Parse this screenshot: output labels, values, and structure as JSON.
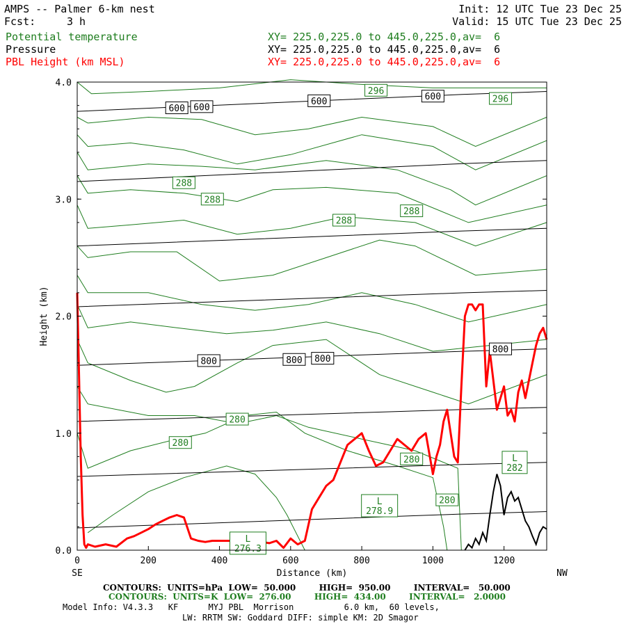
{
  "header": {
    "title": "AMPS -- Palmer 6-km nest",
    "forecast_label": "Fcst:",
    "forecast_value": "3 h",
    "init": "Init: 12 UTC Tue 23 Dec 25",
    "valid": "Valid: 15 UTC Tue 23 Dec 25",
    "fields": [
      {
        "name": "Potential temperature",
        "xy": "XY= 225.0,225.0 to 445.0,225.0,av=  6",
        "color": "#1e7d1e"
      },
      {
        "name": "Pressure",
        "xy": "XY= 225.0,225.0 to 445.0,225.0,av=  6",
        "color": "#000000"
      },
      {
        "name": "PBL Height (km MSL)",
        "xy": "XY= 225.0,225.0 to 445.0,225.0,av=  6",
        "color": "#ff0000"
      }
    ]
  },
  "chart_data": {
    "type": "line",
    "title": "AMPS -- Palmer 6-km nest",
    "xlabel": "Distance (km)",
    "ylabel": "Height (km)",
    "xlim": [
      0,
      1320
    ],
    "ylim": [
      0,
      4.0
    ],
    "x_ticks": [
      "0",
      "200",
      "400",
      "600",
      "800",
      "1000",
      "1200"
    ],
    "y_ticks": [
      "0.0",
      "1.0",
      "2.0",
      "3.0",
      "4.0"
    ],
    "x_end_labels": {
      "left": "SE",
      "right": "NW"
    },
    "pressure_contours": {
      "units": "hPa",
      "low": 50,
      "high": 950,
      "interval": 50,
      "color": "#000000",
      "lines": [
        {
          "y_start": 3.75,
          "y_end": 3.92
        },
        {
          "y_start": 3.15,
          "y_end": 3.33
        },
        {
          "y_start": 2.6,
          "y_end": 2.75
        },
        {
          "y_start": 2.08,
          "y_end": 2.22
        },
        {
          "y_start": 1.58,
          "y_end": 1.72
        },
        {
          "y_start": 1.1,
          "y_end": 1.22
        },
        {
          "y_start": 0.63,
          "y_end": 0.75
        },
        {
          "y_start": 0.19,
          "y_end": 0.33
        }
      ],
      "labels": [
        {
          "text": "600",
          "x": 280,
          "y": 3.78
        },
        {
          "text": "600",
          "x": 350,
          "y": 3.79
        },
        {
          "text": "600",
          "x": 680,
          "y": 3.84
        },
        {
          "text": "600",
          "x": 1000,
          "y": 3.88
        },
        {
          "text": "800",
          "x": 370,
          "y": 1.62
        },
        {
          "text": "800",
          "x": 610,
          "y": 1.63
        },
        {
          "text": "800",
          "x": 690,
          "y": 1.64
        },
        {
          "text": "800",
          "x": 1190,
          "y": 1.72
        }
      ]
    },
    "potential_temperature_contours": {
      "units": "K",
      "low": 276,
      "high": 434,
      "interval": 2,
      "color": "#1e7d1e",
      "lines": [
        [
          [
            0,
            4.0
          ],
          [
            40,
            3.9
          ],
          [
            200,
            3.92
          ],
          [
            400,
            3.95
          ],
          [
            600,
            4.02
          ],
          [
            800,
            3.98
          ],
          [
            1000,
            3.95
          ],
          [
            1320,
            3.95
          ]
        ],
        [
          [
            0,
            3.7
          ],
          [
            30,
            3.65
          ],
          [
            200,
            3.7
          ],
          [
            350,
            3.68
          ],
          [
            500,
            3.55
          ],
          [
            650,
            3.6
          ],
          [
            800,
            3.7
          ],
          [
            1000,
            3.62
          ],
          [
            1120,
            3.45
          ],
          [
            1320,
            3.7
          ]
        ],
        [
          [
            0,
            3.55
          ],
          [
            30,
            3.45
          ],
          [
            150,
            3.48
          ],
          [
            300,
            3.42
          ],
          [
            450,
            3.3
          ],
          [
            600,
            3.38
          ],
          [
            800,
            3.55
          ],
          [
            1000,
            3.45
          ],
          [
            1120,
            3.25
          ],
          [
            1320,
            3.5
          ]
        ],
        [
          [
            0,
            3.4
          ],
          [
            30,
            3.25
          ],
          [
            200,
            3.3
          ],
          [
            350,
            3.28
          ],
          [
            500,
            3.25
          ],
          [
            700,
            3.33
          ],
          [
            900,
            3.25
          ],
          [
            1050,
            3.08
          ],
          [
            1120,
            2.95
          ],
          [
            1320,
            3.2
          ]
        ],
        [
          [
            0,
            3.2
          ],
          [
            30,
            3.05
          ],
          [
            150,
            3.08
          ],
          [
            300,
            3.05
          ],
          [
            450,
            2.98
          ],
          [
            550,
            3.08
          ],
          [
            700,
            3.1
          ],
          [
            900,
            3.05
          ],
          [
            1100,
            2.8
          ],
          [
            1320,
            2.95
          ]
        ],
        [
          [
            0,
            2.95
          ],
          [
            30,
            2.75
          ],
          [
            150,
            2.78
          ],
          [
            300,
            2.82
          ],
          [
            450,
            2.7
          ],
          [
            600,
            2.75
          ],
          [
            750,
            2.85
          ],
          [
            950,
            2.8
          ],
          [
            1120,
            2.6
          ],
          [
            1320,
            2.8
          ]
        ],
        [
          [
            0,
            2.6
          ],
          [
            30,
            2.5
          ],
          [
            150,
            2.55
          ],
          [
            280,
            2.55
          ],
          [
            400,
            2.3
          ],
          [
            550,
            2.35
          ],
          [
            700,
            2.5
          ],
          [
            850,
            2.65
          ],
          [
            950,
            2.6
          ],
          [
            1120,
            2.35
          ],
          [
            1320,
            2.4
          ]
        ],
        [
          [
            0,
            2.35
          ],
          [
            30,
            2.2
          ],
          [
            200,
            2.2
          ],
          [
            350,
            2.1
          ],
          [
            500,
            2.05
          ],
          [
            650,
            2.1
          ],
          [
            800,
            2.2
          ],
          [
            950,
            2.1
          ],
          [
            1100,
            1.95
          ],
          [
            1320,
            2.1
          ]
        ],
        [
          [
            0,
            2.1
          ],
          [
            30,
            1.9
          ],
          [
            150,
            1.95
          ],
          [
            280,
            1.9
          ],
          [
            420,
            1.85
          ],
          [
            550,
            1.88
          ],
          [
            700,
            1.95
          ],
          [
            850,
            1.85
          ],
          [
            1000,
            1.7
          ],
          [
            1320,
            1.8
          ]
        ],
        [
          [
            0,
            1.8
          ],
          [
            30,
            1.6
          ],
          [
            150,
            1.45
          ],
          [
            250,
            1.35
          ],
          [
            330,
            1.4
          ],
          [
            450,
            1.6
          ],
          [
            550,
            1.75
          ],
          [
            700,
            1.8
          ],
          [
            850,
            1.5
          ],
          [
            1000,
            1.35
          ],
          [
            1100,
            1.25
          ],
          [
            1320,
            1.5
          ]
        ],
        [
          [
            0,
            1.4
          ],
          [
            30,
            1.25
          ],
          [
            200,
            1.15
          ],
          [
            330,
            1.15
          ],
          [
            450,
            1.08
          ],
          [
            560,
            1.15
          ],
          [
            650,
            1.05
          ],
          [
            800,
            0.95
          ],
          [
            950,
            0.85
          ],
          [
            1070,
            0.7
          ],
          [
            1080,
            0.0
          ]
        ],
        [
          [
            0,
            1.0
          ],
          [
            30,
            0.7
          ],
          [
            150,
            0.85
          ],
          [
            280,
            0.95
          ],
          [
            360,
            1.0
          ],
          [
            470,
            1.15
          ],
          [
            560,
            1.18
          ],
          [
            640,
            1.0
          ],
          [
            760,
            0.85
          ],
          [
            900,
            0.72
          ],
          [
            1000,
            0.62
          ],
          [
            1030,
            0.2
          ],
          [
            1040,
            0.0
          ]
        ],
        [
          [
            30,
            0.15
          ],
          [
            100,
            0.3
          ],
          [
            200,
            0.5
          ],
          [
            300,
            0.62
          ],
          [
            420,
            0.72
          ],
          [
            500,
            0.65
          ],
          [
            560,
            0.45
          ],
          [
            590,
            0.3
          ],
          [
            640,
            0.0
          ]
        ]
      ],
      "labels": [
        {
          "text": "296",
          "x": 840,
          "y": 3.93
        },
        {
          "text": "296",
          "x": 1190,
          "y": 3.86
        },
        {
          "text": "288",
          "x": 300,
          "y": 3.14
        },
        {
          "text": "288",
          "x": 380,
          "y": 3.0
        },
        {
          "text": "288",
          "x": 750,
          "y": 2.82
        },
        {
          "text": "288",
          "x": 940,
          "y": 2.9
        },
        {
          "text": "280",
          "x": 450,
          "y": 1.12
        },
        {
          "text": "280",
          "x": 290,
          "y": 0.92
        },
        {
          "text": "280",
          "x": 940,
          "y": 0.78
        },
        {
          "text": "280",
          "x": 1040,
          "y": 0.43
        }
      ],
      "low_markers": [
        {
          "letter": "L",
          "value": "278.9",
          "x": 850,
          "y": 0.38
        },
        {
          "letter": "L",
          "value": "276.3",
          "x": 480,
          "y": 0.06
        },
        {
          "letter": "L",
          "value": "282",
          "x": 1230,
          "y": 0.75
        }
      ]
    },
    "pbl_height": {
      "name": "PBL Height (km MSL)",
      "color": "#ff0000",
      "x": [
        0,
        5,
        10,
        15,
        20,
        25,
        30,
        50,
        80,
        110,
        140,
        160,
        180,
        200,
        220,
        240,
        260,
        280,
        300,
        320,
        340,
        360,
        380,
        400,
        450,
        500,
        540,
        560,
        580,
        600,
        620,
        640,
        660,
        680,
        700,
        720,
        740,
        760,
        780,
        800,
        820,
        840,
        860,
        880,
        900,
        920,
        940,
        960,
        980,
        1000,
        1010,
        1020,
        1030,
        1040,
        1050,
        1060,
        1070,
        1080,
        1090,
        1100,
        1110,
        1120,
        1130,
        1140,
        1150,
        1160,
        1170,
        1180,
        1190,
        1200,
        1210,
        1220,
        1230,
        1240,
        1250,
        1260,
        1270,
        1280,
        1290,
        1300,
        1310,
        1320
      ],
      "y": [
        2.2,
        1.5,
        0.8,
        0.3,
        0.05,
        0.02,
        0.05,
        0.03,
        0.05,
        0.03,
        0.1,
        0.12,
        0.15,
        0.18,
        0.22,
        0.25,
        0.28,
        0.3,
        0.28,
        0.1,
        0.08,
        0.07,
        0.08,
        0.08,
        0.08,
        0.08,
        0.06,
        0.08,
        0.02,
        0.1,
        0.05,
        0.08,
        0.35,
        0.45,
        0.55,
        0.6,
        0.75,
        0.9,
        0.95,
        1.0,
        0.85,
        0.72,
        0.75,
        0.85,
        0.95,
        0.9,
        0.85,
        0.95,
        1.0,
        0.65,
        0.8,
        0.9,
        1.1,
        1.2,
        1.0,
        0.8,
        0.75,
        1.4,
        2.0,
        2.1,
        2.1,
        2.05,
        2.1,
        2.1,
        1.4,
        1.7,
        1.45,
        1.2,
        1.3,
        1.4,
        1.15,
        1.2,
        1.1,
        1.35,
        1.45,
        1.3,
        1.45,
        1.6,
        1.75,
        1.85,
        1.9,
        1.8
      ]
    },
    "terrain": {
      "name": "Terrain",
      "color": "#000000",
      "x": [
        1090,
        1100,
        1110,
        1120,
        1130,
        1140,
        1150,
        1160,
        1170,
        1180,
        1190,
        1200,
        1210,
        1220,
        1230,
        1240,
        1250,
        1260,
        1270,
        1280,
        1290,
        1300,
        1310,
        1320
      ],
      "y": [
        0.0,
        0.05,
        0.02,
        0.1,
        0.05,
        0.15,
        0.08,
        0.3,
        0.5,
        0.65,
        0.55,
        0.3,
        0.45,
        0.5,
        0.42,
        0.45,
        0.35,
        0.25,
        0.2,
        0.12,
        0.05,
        0.15,
        0.2,
        0.18
      ]
    }
  },
  "footer": {
    "line1": "CONTOURS:  UNITS=hPa  LOW=  50.000        HIGH=  950.00        INTERVAL=   50.000",
    "line2": "CONTOURS:  UNITS=K  LOW=  276.00        HIGH=  434.00        INTERVAL=   2.0000",
    "line3": "Model Info: V4.3.3   KF      MYJ PBL  Morrison          6.0 km,  60 levels,",
    "line4": "LW: RRTM SW: Goddard DIFF: simple KM: 2D Smagor"
  }
}
